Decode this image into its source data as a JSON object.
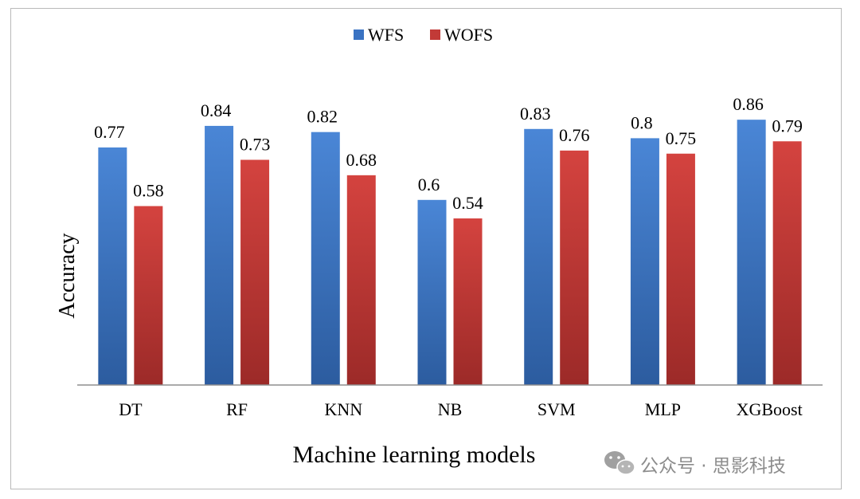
{
  "chart_data": {
    "type": "bar",
    "title": "",
    "xlabel": "Machine learning models",
    "ylabel": "Accuracy",
    "ylim": [
      0,
      1
    ],
    "grid": false,
    "legend_position": "top-center",
    "categories": [
      "DT",
      "RF",
      "KNN",
      "NB",
      "SVM",
      "MLP",
      "XGBoost"
    ],
    "series": [
      {
        "name": "WFS",
        "color": "#3a73c3",
        "values": [
          0.77,
          0.84,
          0.82,
          0.6,
          0.83,
          0.8,
          0.86
        ],
        "labels": [
          "0.77",
          "0.84",
          "0.82",
          "0.6",
          "0.83",
          "0.8",
          "0.86"
        ]
      },
      {
        "name": "WOFS",
        "color": "#c23a37",
        "values": [
          0.58,
          0.73,
          0.68,
          0.54,
          0.76,
          0.75,
          0.79
        ],
        "labels": [
          "0.58",
          "0.73",
          "0.68",
          "0.54",
          "0.76",
          "0.75",
          "0.79"
        ]
      }
    ]
  },
  "watermark": {
    "icon": "wechat-icon",
    "text": "公众号 · 思影科技"
  }
}
